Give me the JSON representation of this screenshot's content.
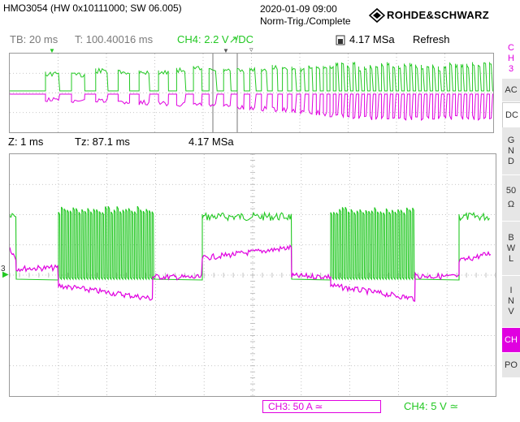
{
  "header": {
    "device": "HMO3054 (HW 0x10111000; SW 06.005)",
    "datetime": "2020-01-09 09:00",
    "trigger_status": "Norm-Trig./Complete",
    "brand": "ROHDE&SCHWARZ"
  },
  "status_bar": {
    "timebase": "TB: 20 ms",
    "trigger_time": "T: 100.40016 ms",
    "ch4_setting": "CH4: 2.2 V",
    "ch4_coupling": "/DC",
    "sample_rate": "4.17 MSa",
    "mode": "Refresh"
  },
  "zoom_bar": {
    "zoom": "Z: 1 ms",
    "tz": "Tz: 87.1 ms",
    "sample_rate": "4.17 MSa"
  },
  "side_menu": {
    "channel": [
      "C",
      "H",
      "3"
    ],
    "buttons": [
      {
        "lines": [
          "AC"
        ]
      },
      {
        "lines": [
          "DC"
        ]
      },
      {
        "lines": [
          "G",
          "N",
          "D"
        ]
      },
      {
        "lines": [
          "50",
          "Ω"
        ]
      },
      {
        "lines": [
          "B",
          "W",
          "L"
        ]
      },
      {
        "lines": [
          "I",
          "N",
          "V"
        ]
      },
      {
        "lines": [
          "CH"
        ]
      },
      {
        "lines": [
          "PO"
        ]
      }
    ]
  },
  "footer": {
    "ch3": "CH3: 50 A ≃",
    "ch4": "CH4: 5 V ≃"
  },
  "markers": {
    "ch3_ground": "3"
  },
  "colors": {
    "ch3": "#e000e0",
    "ch4": "#22c822",
    "grid": "#b4b4b4",
    "side_active": "#e000e0"
  }
}
